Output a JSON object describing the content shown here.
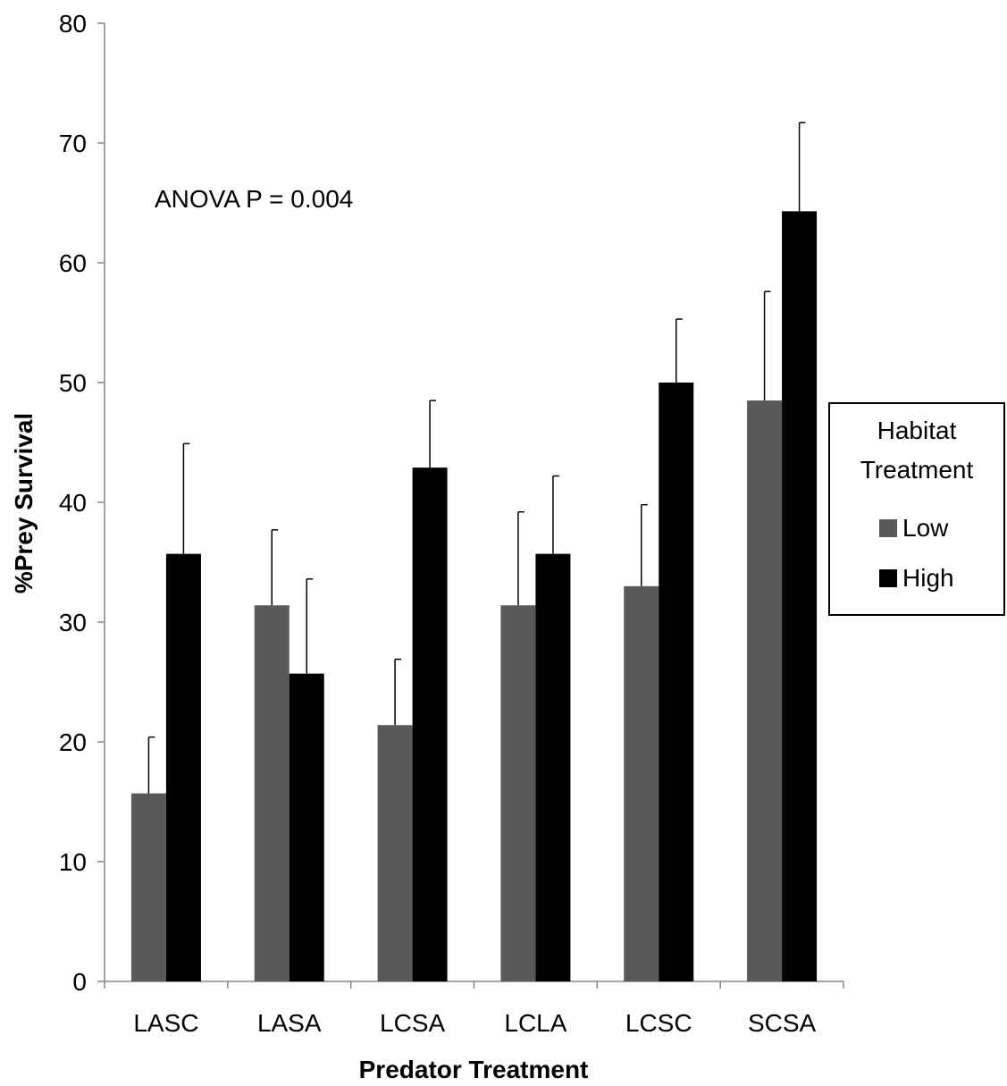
{
  "chart_data": {
    "type": "bar",
    "xlabel": "Predator Treatment",
    "ylabel": "%Prey Survival",
    "ylim": [
      0,
      80
    ],
    "yticks": [
      0,
      10,
      20,
      30,
      40,
      50,
      60,
      70,
      80
    ],
    "categories": [
      "LASC",
      "LASA",
      "LCSA",
      "LCLA",
      "LCSC",
      "SCSA"
    ],
    "series": [
      {
        "name": "Low",
        "color": "#595959",
        "values": [
          15.7,
          31.4,
          21.4,
          31.4,
          33.0,
          48.5
        ],
        "error": [
          4.7,
          6.3,
          5.5,
          7.8,
          6.8,
          9.1
        ]
      },
      {
        "name": "High",
        "color": "#000000",
        "values": [
          35.7,
          25.7,
          42.9,
          35.7,
          50.0,
          64.3
        ],
        "error": [
          9.2,
          7.9,
          5.6,
          6.5,
          5.3,
          7.4
        ]
      }
    ],
    "annotation": "ANOVA P = 0.004",
    "legend": {
      "title_lines": [
        "Habitat",
        "Treatment"
      ],
      "placement": "right"
    },
    "grid": false
  }
}
